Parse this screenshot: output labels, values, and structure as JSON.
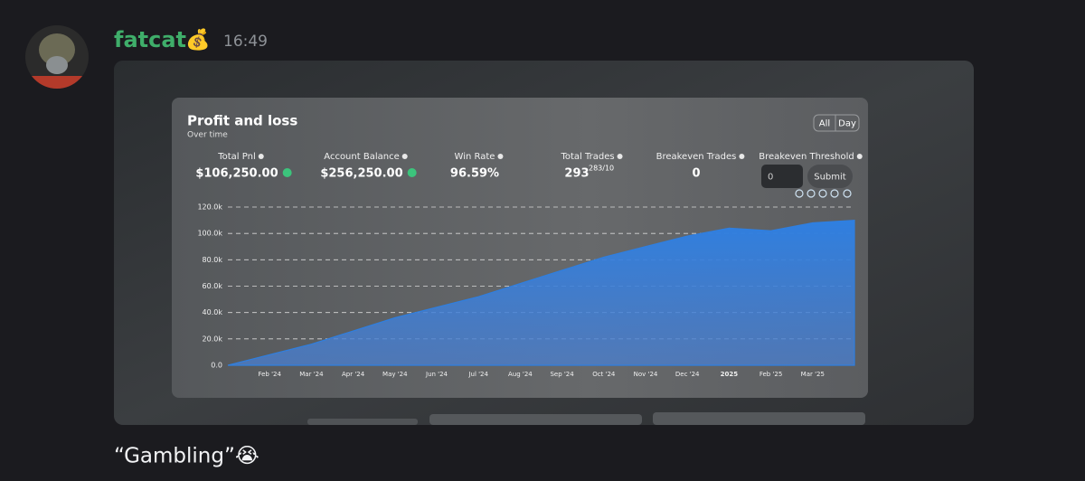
{
  "message": {
    "author": "fatcat",
    "badge": "💰",
    "time": "16:49",
    "text": "“Gambling”😭"
  },
  "image": {
    "title": "Profit and loss",
    "subtitle": "Over time",
    "range_buttons": [
      "All",
      "Day"
    ],
    "stats": [
      {
        "label": "Total Pnl",
        "value": "$106,250.00"
      },
      {
        "label": "Account Balance",
        "value": "$256,250.00"
      },
      {
        "label": "Win Rate",
        "value": "96.59%"
      },
      {
        "label": "Total Trades",
        "value": "293",
        "sup": "283/10"
      },
      {
        "label": "Breakeven Trades",
        "value": "0"
      },
      {
        "label": "Breakeven Threshold",
        "input": "0",
        "button": "Submit"
      }
    ],
    "chart": {
      "type": "area",
      "color": "#2f7fe0",
      "categories": [
        null,
        "Feb '24",
        "Mar '24",
        "Apr '24",
        "May '24",
        "Jun '24",
        "Jul '24",
        "Aug '24",
        "Sep '24",
        "Oct '24",
        "Nov '24",
        "Dec '24",
        "2025",
        "Feb '25",
        "Mar '25",
        null
      ],
      "values": [
        0,
        8000,
        16000,
        26000,
        36000,
        44000,
        52000,
        62000,
        72000,
        82000,
        90000,
        98000,
        104000,
        102000,
        108000,
        110000
      ],
      "ylim": [
        0,
        120000
      ],
      "yticks": [
        {
          "value": 0,
          "label": "0.0"
        },
        {
          "value": 20000,
          "label": "20.0k"
        },
        {
          "value": 40000,
          "label": "40.0k"
        },
        {
          "value": 60000,
          "label": "60.0k"
        },
        {
          "value": 80000,
          "label": "80.0k"
        },
        {
          "value": 100000,
          "label": "100.0k"
        },
        {
          "value": 120000,
          "label": "120.0k"
        }
      ],
      "grid": true
    }
  }
}
